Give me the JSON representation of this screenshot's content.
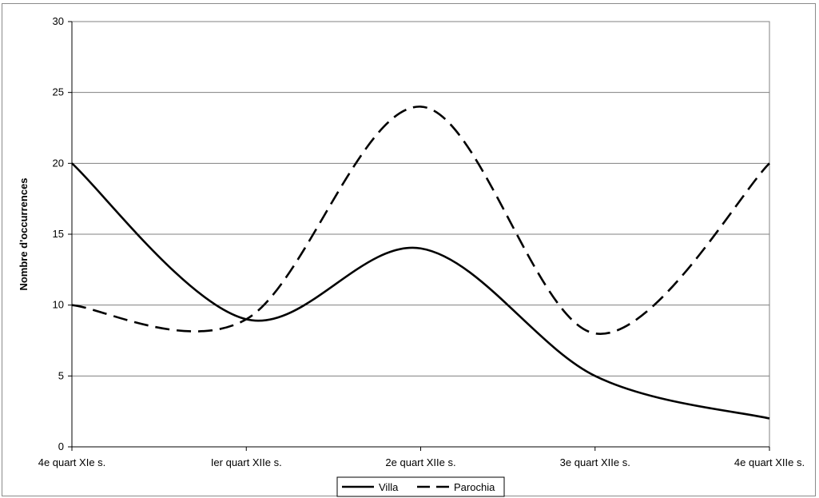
{
  "chart_data": {
    "type": "line",
    "title": "",
    "xlabel": "",
    "ylabel": "Nombre d'occurrences",
    "categories": [
      "4e quart XIe s.",
      "Ier quart XIIe s.",
      "2e quart XIIe s.",
      "3e quart XIIe s.",
      "4e quart XIIe s."
    ],
    "ylim": [
      0,
      30
    ],
    "yticks": [
      0,
      5,
      10,
      15,
      20,
      25,
      30
    ],
    "grid": "horizontal",
    "legend_position": "bottom",
    "smoothed": true,
    "series": [
      {
        "name": "Villa",
        "style": "solid",
        "color": "#000000",
        "values": [
          20,
          9,
          14,
          5,
          2
        ]
      },
      {
        "name": "Parochia",
        "style": "dashed",
        "color": "#000000",
        "values": [
          10,
          9,
          24,
          8,
          20
        ]
      }
    ]
  }
}
